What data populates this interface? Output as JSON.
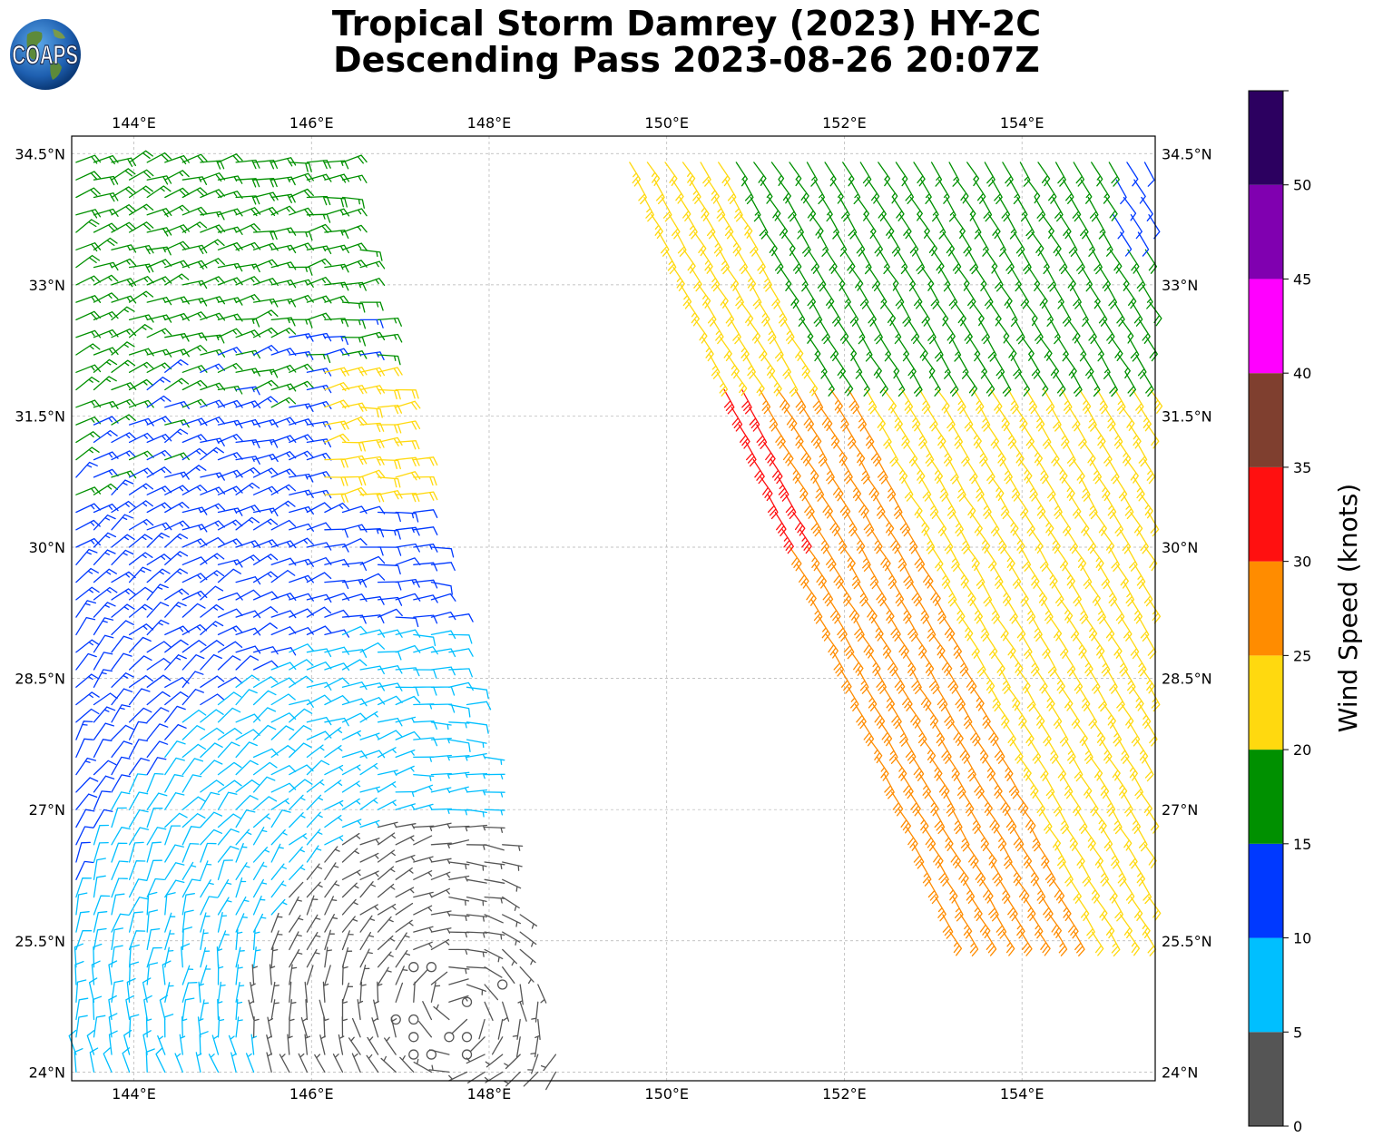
{
  "title": {
    "line1": "Tropical Storm Damrey (2023) HY-2C",
    "line2": "Descending Pass 2023-08-26 20:07Z"
  },
  "logo": {
    "text": "COAPS",
    "icon": "globe-icon"
  },
  "map": {
    "lon_range": [
      143.3,
      155.5
    ],
    "lat_range": [
      23.9,
      34.7
    ],
    "grid": true,
    "lon_ticks": [
      {
        "value": 144,
        "label": "144°E"
      },
      {
        "value": 146,
        "label": "146°E"
      },
      {
        "value": 148,
        "label": "148°E"
      },
      {
        "value": 150,
        "label": "150°E"
      },
      {
        "value": 152,
        "label": "152°E"
      },
      {
        "value": 154,
        "label": "154°E"
      }
    ],
    "lat_ticks": [
      {
        "value": 34.5,
        "label": "34.5°N"
      },
      {
        "value": 33,
        "label": "33°N"
      },
      {
        "value": 31.5,
        "label": "31.5°N"
      },
      {
        "value": 30,
        "label": "30°N"
      },
      {
        "value": 28.5,
        "label": "28.5°N"
      },
      {
        "value": 27,
        "label": "27°N"
      },
      {
        "value": 25.5,
        "label": "25.5°N"
      },
      {
        "value": 24,
        "label": "24°N"
      }
    ]
  },
  "colorbar": {
    "label": "Wind Speed (knots)",
    "ticks": [
      "0",
      "5",
      "10",
      "15",
      "20",
      "25",
      "30",
      "35",
      "40",
      "45",
      "50"
    ],
    "bins": [
      {
        "min": 0,
        "max": 5,
        "color": "#555555"
      },
      {
        "min": 5,
        "max": 10,
        "color": "#00bfff"
      },
      {
        "min": 10,
        "max": 15,
        "color": "#0039ff"
      },
      {
        "min": 15,
        "max": 20,
        "color": "#009000"
      },
      {
        "min": 20,
        "max": 25,
        "color": "#ffd90f"
      },
      {
        "min": 25,
        "max": 30,
        "color": "#ff8c00"
      },
      {
        "min": 30,
        "max": 35,
        "color": "#ff1010"
      },
      {
        "min": 35,
        "max": 40,
        "color": "#7f3f2f"
      },
      {
        "min": 40,
        "max": 45,
        "color": "#ff00ff"
      },
      {
        "min": 45,
        "max": 50,
        "color": "#8000b0"
      },
      {
        "min": 50,
        "max": 55,
        "color": "#2c0060"
      }
    ]
  }
}
